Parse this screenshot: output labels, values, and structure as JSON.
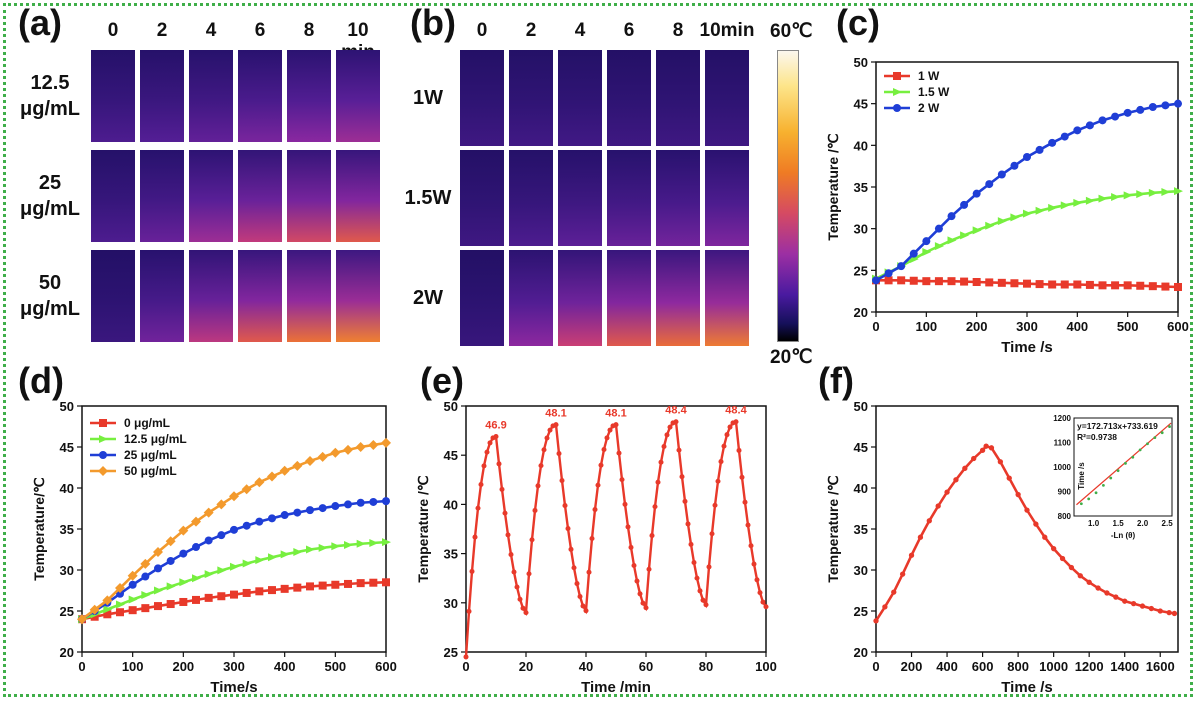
{
  "panels": {
    "a": {
      "label": "(a)",
      "times": [
        "0",
        "2",
        "4",
        "6",
        "8",
        "10 min"
      ],
      "rows": [
        {
          "label": "12.5\nμg/mL",
          "levels": [
            0.12,
            0.15,
            0.2,
            0.28,
            0.34,
            0.4
          ]
        },
        {
          "label": "25\nμg/mL",
          "levels": [
            0.12,
            0.22,
            0.4,
            0.52,
            0.6,
            0.68
          ]
        },
        {
          "label": "50\nμg/mL",
          "levels": [
            0.04,
            0.25,
            0.5,
            0.68,
            0.78,
            0.84
          ]
        }
      ]
    },
    "b": {
      "label": "(b)",
      "times": [
        "0",
        "2",
        "4",
        "6",
        "8",
        "10min"
      ],
      "rows": [
        {
          "label": "1W",
          "levels": [
            0.06,
            0.07,
            0.07,
            0.06,
            0.06,
            0.06
          ]
        },
        {
          "label": "1.5W",
          "levels": [
            0.06,
            0.12,
            0.18,
            0.22,
            0.26,
            0.3
          ]
        },
        {
          "label": "2W",
          "levels": [
            0.03,
            0.35,
            0.55,
            0.68,
            0.76,
            0.82
          ]
        }
      ],
      "colorbar": {
        "max_label": "60℃",
        "min_label": "20℃"
      }
    },
    "c": {
      "label": "(c)"
    },
    "d": {
      "label": "(d)"
    },
    "e": {
      "label": "(e)"
    },
    "f": {
      "label": "(f)"
    }
  },
  "chart_data": [
    {
      "panel": "c",
      "type": "line",
      "xlabel": "Time /s",
      "ylabel": "Temperature /℃",
      "xlim": [
        0,
        600
      ],
      "ylim": [
        20,
        50
      ],
      "xticks": [
        0,
        100,
        200,
        300,
        400,
        500,
        600
      ],
      "yticks": [
        20,
        25,
        30,
        35,
        40,
        45,
        50
      ],
      "legend": "top-left",
      "series": [
        {
          "name": "1 W",
          "color": "#e8392a",
          "marker": "square",
          "x": [
            0,
            50,
            100,
            150,
            200,
            250,
            300,
            350,
            400,
            450,
            500,
            550,
            600
          ],
          "y": [
            23.8,
            23.8,
            23.7,
            23.7,
            23.6,
            23.5,
            23.4,
            23.3,
            23.3,
            23.2,
            23.2,
            23.1,
            23.0
          ]
        },
        {
          "name": "1.5 W",
          "color": "#77ef3f",
          "marker": "triangle-right",
          "x": [
            0,
            50,
            100,
            150,
            200,
            250,
            300,
            350,
            400,
            450,
            500,
            550,
            600
          ],
          "y": [
            24.0,
            25.5,
            27.2,
            28.6,
            29.8,
            30.9,
            31.8,
            32.5,
            33.1,
            33.6,
            34.0,
            34.3,
            34.5
          ]
        },
        {
          "name": "2 W",
          "color": "#1f3ed6",
          "marker": "circle",
          "x": [
            0,
            50,
            100,
            150,
            200,
            250,
            300,
            350,
            400,
            450,
            500,
            550,
            600
          ],
          "y": [
            23.8,
            25.5,
            28.5,
            31.5,
            34.2,
            36.5,
            38.6,
            40.3,
            41.8,
            43.0,
            43.9,
            44.6,
            45.0
          ]
        }
      ]
    },
    {
      "panel": "d",
      "type": "line",
      "xlabel": "Time/s",
      "ylabel": "Temperature/℃",
      "xlim": [
        0,
        600
      ],
      "ylim": [
        20,
        50
      ],
      "xticks": [
        0,
        100,
        200,
        300,
        400,
        500,
        600
      ],
      "yticks": [
        20,
        25,
        30,
        35,
        40,
        45,
        50
      ],
      "legend": "top-left",
      "series": [
        {
          "name": "0 μg/mL",
          "color": "#e8392a",
          "marker": "square",
          "x": [
            0,
            50,
            100,
            150,
            200,
            250,
            300,
            350,
            400,
            450,
            500,
            550,
            600
          ],
          "y": [
            24.0,
            24.6,
            25.1,
            25.6,
            26.1,
            26.6,
            27.0,
            27.4,
            27.7,
            28.0,
            28.2,
            28.4,
            28.5
          ]
        },
        {
          "name": "12.5 μg/mL",
          "color": "#77ef3f",
          "marker": "triangle-right",
          "x": [
            0,
            50,
            100,
            150,
            200,
            250,
            300,
            350,
            400,
            450,
            500,
            550,
            600
          ],
          "y": [
            24.0,
            25.2,
            26.4,
            27.5,
            28.5,
            29.5,
            30.4,
            31.2,
            31.9,
            32.5,
            32.9,
            33.2,
            33.4
          ]
        },
        {
          "name": "25 μg/mL",
          "color": "#1f3ed6",
          "marker": "circle",
          "x": [
            0,
            50,
            100,
            150,
            200,
            250,
            300,
            350,
            400,
            450,
            500,
            550,
            600
          ],
          "y": [
            24.0,
            26.0,
            28.2,
            30.2,
            32.0,
            33.6,
            34.9,
            35.9,
            36.7,
            37.3,
            37.8,
            38.2,
            38.4
          ]
        },
        {
          "name": "50 μg/mL",
          "color": "#f39a2d",
          "marker": "diamond",
          "x": [
            0,
            50,
            100,
            150,
            200,
            250,
            300,
            350,
            400,
            450,
            500,
            550,
            600
          ],
          "y": [
            24.0,
            26.3,
            29.3,
            32.2,
            34.8,
            37.0,
            39.0,
            40.7,
            42.1,
            43.3,
            44.3,
            45.0,
            45.5
          ]
        }
      ]
    },
    {
      "panel": "e",
      "type": "line",
      "xlabel": "Time /min",
      "ylabel": "Temperature /℃",
      "xlim": [
        0,
        100
      ],
      "ylim": [
        25,
        50
      ],
      "xticks": [
        0,
        20,
        40,
        60,
        80,
        100
      ],
      "yticks": [
        25,
        30,
        35,
        40,
        45,
        50
      ],
      "series": [
        {
          "name": "",
          "color": "#e8392a",
          "marker": "dot",
          "peaks": [
            {
              "x": 10,
              "y": 46.9,
              "label": "46.9"
            },
            {
              "x": 30,
              "y": 48.1,
              "label": "48.1"
            },
            {
              "x": 50,
              "y": 48.1,
              "label": "48.1"
            },
            {
              "x": 70,
              "y": 48.4,
              "label": "48.4"
            },
            {
              "x": 90,
              "y": 48.4,
              "label": "48.4"
            }
          ],
          "troughs": [
            {
              "x": 20,
              "y": 29.0
            },
            {
              "x": 40,
              "y": 29.2
            },
            {
              "x": 60,
              "y": 29.5
            },
            {
              "x": 80,
              "y": 29.8
            },
            {
              "x": 100,
              "y": 29.6
            }
          ],
          "start": {
            "x": 0,
            "y": 24.5
          }
        }
      ]
    },
    {
      "panel": "f",
      "type": "line",
      "xlabel": "Time /s",
      "ylabel": "Temperature /℃",
      "xlim": [
        0,
        1700
      ],
      "ylim": [
        20,
        50
      ],
      "xticks": [
        0,
        200,
        400,
        600,
        800,
        1000,
        1200,
        1400,
        1600
      ],
      "yticks": [
        20,
        25,
        30,
        35,
        40,
        45,
        50
      ],
      "series": [
        {
          "name": "",
          "color": "#e8392a",
          "marker": "dot",
          "x": [
            0,
            50,
            100,
            150,
            200,
            250,
            300,
            350,
            400,
            450,
            500,
            550,
            600,
            620,
            650,
            700,
            750,
            800,
            850,
            900,
            950,
            1000,
            1050,
            1100,
            1150,
            1200,
            1250,
            1300,
            1350,
            1400,
            1450,
            1500,
            1550,
            1600,
            1650,
            1680
          ],
          "y": [
            23.8,
            25.5,
            27.3,
            29.5,
            31.8,
            34.0,
            36.0,
            37.8,
            39.5,
            41.0,
            42.4,
            43.6,
            44.6,
            45.1,
            44.9,
            43.2,
            41.2,
            39.2,
            37.3,
            35.6,
            34.0,
            32.6,
            31.4,
            30.3,
            29.3,
            28.5,
            27.8,
            27.2,
            26.7,
            26.2,
            25.9,
            25.6,
            25.3,
            25.0,
            24.8,
            24.7
          ]
        }
      ],
      "inset": {
        "xlabel": "-Ln (θ)",
        "ylabel": "Time /s",
        "xlim": [
          0.6,
          2.6
        ],
        "ylim": [
          800,
          1200
        ],
        "xticks": [
          1.0,
          1.5,
          2.0,
          2.5
        ],
        "yticks": [
          800,
          900,
          1000,
          1100,
          1200
        ],
        "equation": "y=172.713x+733.619",
        "r2": "R²=0.9738",
        "slope": 172.713,
        "intercept": 733.619,
        "points_x": [
          0.75,
          0.9,
          1.05,
          1.2,
          1.35,
          1.5,
          1.65,
          1.8,
          1.95,
          2.1,
          2.25,
          2.4,
          2.55
        ],
        "points_y": [
          850,
          870,
          895,
          925,
          955,
          985,
          1015,
          1040,
          1070,
          1095,
          1120,
          1140,
          1165
        ]
      }
    }
  ]
}
